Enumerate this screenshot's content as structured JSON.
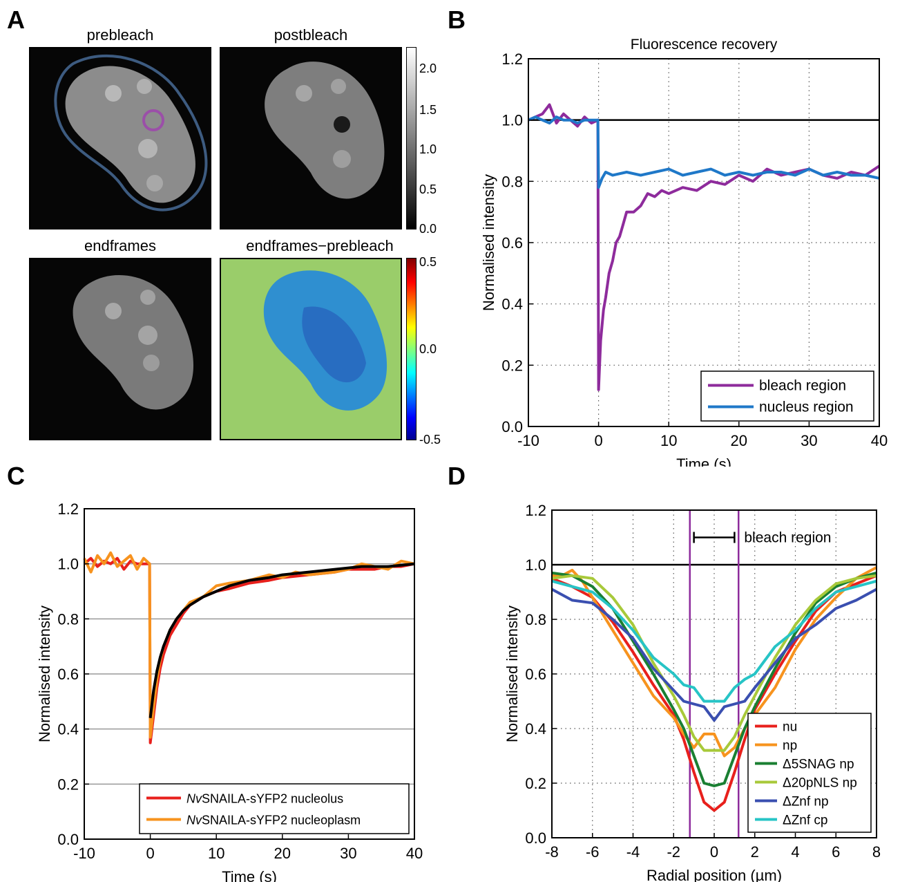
{
  "panel_labels": [
    "A",
    "B",
    "C",
    "D"
  ],
  "panel_a": {
    "images": [
      {
        "title": "prebleach"
      },
      {
        "title": "postbleach"
      },
      {
        "title": "endframes"
      },
      {
        "title": "endframes−prebleach"
      }
    ],
    "colorbar_gray": {
      "ticks": [
        "2.0",
        "1.5",
        "1.0",
        "0.5",
        "0.0"
      ]
    },
    "colorbar_jet": {
      "ticks": [
        "0.5",
        "0.0",
        "-0.5"
      ]
    },
    "colors": {
      "nucleus_outline": "#3d5b80",
      "bleach_circle": "#9b4fa8",
      "diff_background": "#9acd6a",
      "diff_cell": "#2f8fd0"
    }
  },
  "chart_data": [
    {
      "type": "line",
      "panel": "B",
      "title": "Fluorescence recovery",
      "xlabel": "Time (s)",
      "ylabel": "Normalised intensity",
      "xlim": [
        -10,
        40
      ],
      "ylim": [
        0,
        1.2
      ],
      "xticks": [
        -10,
        0,
        10,
        20,
        30,
        40
      ],
      "yticks": [
        0.0,
        0.2,
        0.4,
        0.6,
        0.8,
        1.0,
        1.2
      ],
      "grid": "dotted",
      "legend_position": "bottom-right",
      "reference_line": 1.0,
      "series": [
        {
          "name": "bleach region",
          "color": "#8e2b9c",
          "x": [
            -10,
            -9,
            -8,
            -7,
            -6,
            -5,
            -4,
            -3,
            -2,
            -1,
            -0.1,
            0,
            0.3,
            0.7,
            1,
            1.5,
            2,
            2.5,
            3,
            3.5,
            4,
            5,
            6,
            7,
            8,
            9,
            10,
            12,
            14,
            16,
            18,
            20,
            22,
            24,
            26,
            28,
            30,
            32,
            34,
            36,
            38,
            40
          ],
          "y": [
            1.0,
            1.01,
            1.02,
            1.05,
            0.99,
            1.02,
            1.0,
            0.98,
            1.01,
            0.99,
            1.0,
            0.12,
            0.28,
            0.38,
            0.42,
            0.5,
            0.54,
            0.6,
            0.62,
            0.66,
            0.7,
            0.7,
            0.72,
            0.76,
            0.75,
            0.77,
            0.76,
            0.78,
            0.77,
            0.8,
            0.79,
            0.82,
            0.8,
            0.84,
            0.82,
            0.83,
            0.84,
            0.82,
            0.81,
            0.83,
            0.82,
            0.85
          ]
        },
        {
          "name": "nucleus region",
          "color": "#1f78c8",
          "x": [
            -10,
            -9,
            -8,
            -7,
            -6,
            -5,
            -4,
            -3,
            -2,
            -1,
            -0.1,
            0,
            0.5,
            1,
            2,
            4,
            6,
            8,
            10,
            12,
            14,
            16,
            18,
            20,
            22,
            24,
            26,
            28,
            30,
            32,
            34,
            36,
            38,
            40
          ],
          "y": [
            1.0,
            1.01,
            1.0,
            0.99,
            1.01,
            1.0,
            1.0,
            0.99,
            1.0,
            1.0,
            1.0,
            0.78,
            0.81,
            0.83,
            0.82,
            0.83,
            0.82,
            0.83,
            0.84,
            0.82,
            0.83,
            0.84,
            0.82,
            0.83,
            0.82,
            0.83,
            0.83,
            0.82,
            0.84,
            0.82,
            0.83,
            0.82,
            0.82,
            0.81
          ]
        }
      ]
    },
    {
      "type": "line",
      "panel": "C",
      "xlabel": "Time (s)",
      "ylabel": "Normalised intensity",
      "xlim": [
        -10,
        40
      ],
      "ylim": [
        0,
        1.2
      ],
      "xticks": [
        -10,
        0,
        10,
        20,
        30,
        40
      ],
      "yticks": [
        0.0,
        0.2,
        0.4,
        0.6,
        0.8,
        1.0,
        1.2
      ],
      "grid": "horizontal",
      "legend_position": "bottom-right",
      "series": [
        {
          "name_italic": "Nv",
          "name": "SNAILA-sYFP2 nucleolus",
          "color": "#e8201c",
          "x": [
            -10,
            -9,
            -8,
            -7,
            -6,
            -5,
            -4,
            -3,
            -2,
            -1,
            -0.1,
            0,
            0.5,
            1,
            1.5,
            2,
            3,
            4,
            5,
            6,
            8,
            10,
            12,
            15,
            18,
            20,
            24,
            28,
            30,
            34,
            36,
            38,
            40
          ],
          "y": [
            1.0,
            1.02,
            0.99,
            1.01,
            1.0,
            1.02,
            0.98,
            1.01,
            1.0,
            1.0,
            1.0,
            0.35,
            0.45,
            0.55,
            0.62,
            0.67,
            0.74,
            0.78,
            0.82,
            0.85,
            0.88,
            0.9,
            0.91,
            0.93,
            0.94,
            0.95,
            0.96,
            0.97,
            0.98,
            0.98,
            0.99,
            0.99,
            1.0
          ]
        },
        {
          "name_italic": "Nv",
          "name": "SNAILA-sYFP2 nucleoplasm",
          "color": "#f7931e",
          "x": [
            -10,
            -9,
            -8,
            -7,
            -6,
            -5,
            -4,
            -3,
            -2,
            -1,
            -0.1,
            0,
            0.5,
            1,
            1.5,
            2,
            3,
            4,
            5,
            6,
            8,
            10,
            12,
            15,
            18,
            20,
            22,
            24,
            28,
            30,
            32,
            34,
            36,
            38,
            40
          ],
          "y": [
            1.02,
            0.97,
            1.03,
            1.0,
            1.04,
            0.99,
            1.01,
            1.03,
            0.98,
            1.02,
            1.0,
            0.37,
            0.48,
            0.58,
            0.65,
            0.7,
            0.76,
            0.8,
            0.83,
            0.86,
            0.88,
            0.92,
            0.93,
            0.94,
            0.96,
            0.95,
            0.97,
            0.96,
            0.97,
            0.98,
            1.0,
            0.99,
            0.98,
            1.01,
            1.0
          ]
        },
        {
          "name": "",
          "color": "#000000",
          "x": [
            0,
            0.5,
            1,
            1.5,
            2,
            3,
            4,
            5,
            6,
            8,
            10,
            12,
            15,
            18,
            20,
            24,
            28,
            32,
            36,
            40
          ],
          "y": [
            0.44,
            0.54,
            0.61,
            0.66,
            0.7,
            0.76,
            0.8,
            0.83,
            0.85,
            0.88,
            0.9,
            0.92,
            0.94,
            0.95,
            0.96,
            0.97,
            0.98,
            0.99,
            0.99,
            1.0
          ]
        }
      ]
    },
    {
      "type": "line",
      "panel": "D",
      "xlabel": "Radial position (µm)",
      "ylabel": "Normalised intensity",
      "xlim": [
        -8,
        8
      ],
      "ylim": [
        0,
        1.2
      ],
      "xticks": [
        -8,
        -6,
        -4,
        -2,
        0,
        2,
        4,
        6,
        8
      ],
      "yticks": [
        0.0,
        0.2,
        0.4,
        0.6,
        0.8,
        1.0,
        1.2
      ],
      "grid": "dotted",
      "legend_position": "bottom-right",
      "reference_line": 1.0,
      "bleach_region": {
        "label": "bleach region",
        "x": [
          -1.2,
          1.2
        ]
      },
      "series": [
        {
          "name": "nu",
          "color": "#e8201c",
          "x": [
            -8,
            -7,
            -6,
            -5,
            -4,
            -3,
            -2,
            -1.5,
            -1,
            -0.5,
            0,
            0.5,
            1,
            1.5,
            2,
            3,
            4,
            5,
            6,
            7,
            8
          ],
          "y": [
            0.95,
            0.92,
            0.88,
            0.79,
            0.68,
            0.56,
            0.45,
            0.36,
            0.24,
            0.13,
            0.1,
            0.13,
            0.24,
            0.36,
            0.47,
            0.6,
            0.72,
            0.83,
            0.9,
            0.93,
            0.96
          ]
        },
        {
          "name": "np",
          "color": "#f7931e",
          "x": [
            -8,
            -7.5,
            -7,
            -6.5,
            -6,
            -5,
            -4,
            -3,
            -2,
            -1.5,
            -1,
            -0.5,
            0,
            0.5,
            1,
            1.5,
            2,
            3,
            4,
            5,
            6,
            7,
            7.5,
            8
          ],
          "y": [
            0.96,
            0.96,
            0.98,
            0.94,
            0.88,
            0.76,
            0.64,
            0.52,
            0.44,
            0.38,
            0.33,
            0.38,
            0.38,
            0.3,
            0.33,
            0.4,
            0.45,
            0.55,
            0.69,
            0.8,
            0.88,
            0.95,
            0.97,
            0.99
          ]
        },
        {
          "name": "Δ5SNAG np",
          "color": "#1a7f32",
          "x": [
            -8,
            -7,
            -6,
            -5,
            -4,
            -3,
            -2,
            -1.5,
            -1,
            -0.5,
            0,
            0.5,
            1,
            1.5,
            2,
            3,
            4,
            5,
            6,
            7,
            8
          ],
          "y": [
            0.97,
            0.96,
            0.92,
            0.84,
            0.72,
            0.6,
            0.47,
            0.4,
            0.3,
            0.2,
            0.19,
            0.2,
            0.3,
            0.4,
            0.48,
            0.62,
            0.75,
            0.86,
            0.92,
            0.95,
            0.97
          ]
        },
        {
          "name": "Δ20pNLS np",
          "color": "#a8c93a",
          "x": [
            -8,
            -7,
            -6,
            -5,
            -4,
            -3,
            -2,
            -1.5,
            -1,
            -0.5,
            0,
            0.5,
            1,
            1.5,
            2,
            3,
            4,
            5,
            6,
            7,
            8
          ],
          "y": [
            0.95,
            0.96,
            0.95,
            0.88,
            0.78,
            0.64,
            0.52,
            0.45,
            0.37,
            0.32,
            0.32,
            0.32,
            0.37,
            0.45,
            0.52,
            0.66,
            0.78,
            0.87,
            0.93,
            0.95,
            0.96
          ]
        },
        {
          "name": "ΔZnf np",
          "color": "#3a4fb0",
          "x": [
            -8,
            -7,
            -6,
            -5,
            -4,
            -3,
            -2,
            -1.5,
            -1,
            -0.5,
            0,
            0.5,
            1,
            1.5,
            2,
            3,
            4,
            5,
            6,
            7,
            8
          ],
          "y": [
            0.91,
            0.87,
            0.86,
            0.8,
            0.73,
            0.62,
            0.54,
            0.5,
            0.49,
            0.48,
            0.43,
            0.48,
            0.49,
            0.5,
            0.55,
            0.64,
            0.73,
            0.78,
            0.84,
            0.87,
            0.91
          ]
        },
        {
          "name": "ΔZnf cp",
          "color": "#27c4c6",
          "x": [
            -8,
            -7,
            -6,
            -5,
            -4,
            -3,
            -2,
            -1.5,
            -1,
            -0.5,
            0,
            0.5,
            1,
            1.5,
            2,
            3,
            4,
            5,
            6,
            7,
            8
          ],
          "y": [
            0.94,
            0.92,
            0.9,
            0.84,
            0.76,
            0.66,
            0.6,
            0.56,
            0.55,
            0.5,
            0.5,
            0.5,
            0.55,
            0.58,
            0.6,
            0.7,
            0.76,
            0.84,
            0.9,
            0.92,
            0.94
          ]
        }
      ]
    }
  ]
}
